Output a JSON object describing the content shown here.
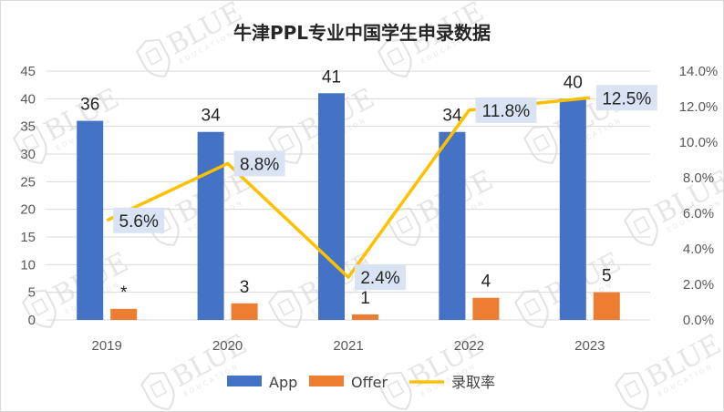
{
  "colors": {
    "app": "#4472C4",
    "offer": "#ED7D31",
    "rate": "#FFC000",
    "rate_label_bg": "#DAE3F3",
    "grid": "#D9D9D9",
    "text": "#595959"
  },
  "watermark": {
    "text": "BLUE",
    "subtext": "EDUCATION"
  },
  "chart_data": {
    "type": "bar",
    "title": "牛津PPL专业中国学生申录数据",
    "categories": [
      "2019",
      "2020",
      "2021",
      "2022",
      "2023"
    ],
    "series": [
      {
        "name": "App",
        "type": "bar",
        "axis": "left",
        "values": [
          36,
          34,
          41,
          34,
          40
        ],
        "labels": [
          "36",
          "34",
          "41",
          "34",
          "40"
        ]
      },
      {
        "name": "Offer",
        "type": "bar",
        "axis": "left",
        "values": [
          2,
          3,
          1,
          4,
          5
        ],
        "labels": [
          "*",
          "3",
          "1",
          "4",
          "5"
        ]
      },
      {
        "name": "录取率",
        "type": "line",
        "axis": "right",
        "values": [
          5.6,
          8.8,
          2.4,
          11.8,
          12.5
        ],
        "labels": [
          "5.6%",
          "8.8%",
          "2.4%",
          "11.8%",
          "12.5%"
        ]
      }
    ],
    "y_left": {
      "min": 0,
      "max": 45,
      "step": 5,
      "ticks": [
        "0",
        "5",
        "10",
        "15",
        "20",
        "25",
        "30",
        "35",
        "40",
        "45"
      ]
    },
    "y_right": {
      "min": 0,
      "max": 14,
      "step": 2,
      "ticks": [
        "0.0%",
        "2.0%",
        "4.0%",
        "6.0%",
        "8.0%",
        "10.0%",
        "12.0%",
        "14.0%"
      ]
    },
    "grid": true,
    "legend_position": "bottom"
  }
}
